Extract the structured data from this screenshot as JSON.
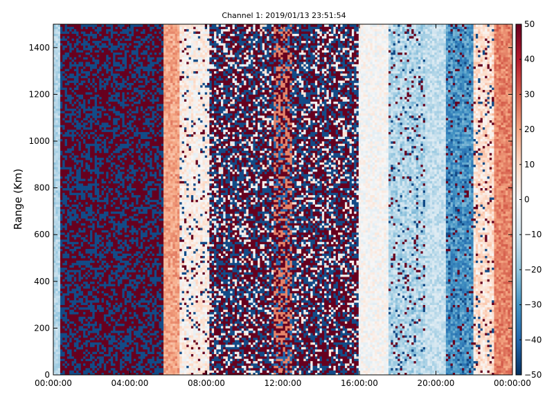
{
  "chart_data": {
    "type": "heatmap",
    "title": "Channel 1: 2019/01/13 23:51:54",
    "xlabel": "",
    "ylabel": "Range (Km)",
    "x_ticks": [
      "00:00:00",
      "04:00:00",
      "08:00:00",
      "12:00:00",
      "16:00:00",
      "20:00:00",
      "00:00:00"
    ],
    "xlim_hours": [
      0,
      24
    ],
    "y_ticks": [
      "0",
      "200",
      "400",
      "600",
      "800",
      "1000",
      "1200",
      "1400"
    ],
    "ylim": [
      0,
      1500
    ],
    "colorbar": {
      "colormap": "RdBu_r",
      "range": [
        -50,
        50
      ],
      "ticks": [
        "50",
        "40",
        "30",
        "20",
        "10",
        "0",
        "−10",
        "−20",
        "−30",
        "−40",
        "−50"
      ]
    },
    "grid": false,
    "time_profile": [
      {
        "from_h": 0.0,
        "to_h": 0.4,
        "pattern": "light-blue"
      },
      {
        "from_h": 0.4,
        "to_h": 5.8,
        "pattern": "noise",
        "values": [
          50,
          -45
        ]
      },
      {
        "from_h": 5.8,
        "to_h": 6.6,
        "pattern": "mean",
        "mean": 20
      },
      {
        "from_h": 6.6,
        "to_h": 8.2,
        "pattern": "mean-speckled",
        "mean": 3
      },
      {
        "from_h": 8.2,
        "to_h": 11.5,
        "pattern": "noise-mixed",
        "values": [
          50,
          -45,
          0
        ]
      },
      {
        "from_h": 11.5,
        "to_h": 12.5,
        "pattern": "noise-warm",
        "values": [
          50,
          25,
          -40
        ]
      },
      {
        "from_h": 12.5,
        "to_h": 16.0,
        "pattern": "noise-mixed",
        "values": [
          50,
          -45,
          0
        ]
      },
      {
        "from_h": 16.0,
        "to_h": 17.5,
        "pattern": "mean",
        "mean": 0
      },
      {
        "from_h": 17.5,
        "to_h": 19.5,
        "pattern": "mean-speckled",
        "mean": -15
      },
      {
        "from_h": 19.5,
        "to_h": 20.5,
        "pattern": "mean",
        "mean": -12
      },
      {
        "from_h": 20.5,
        "to_h": 22.0,
        "pattern": "mean-speckled",
        "mean": -30
      },
      {
        "from_h": 22.0,
        "to_h": 23.0,
        "pattern": "mean-speckled",
        "mean": 8
      },
      {
        "from_h": 23.0,
        "to_h": 24.0,
        "pattern": "mean",
        "mean": 25
      }
    ]
  }
}
